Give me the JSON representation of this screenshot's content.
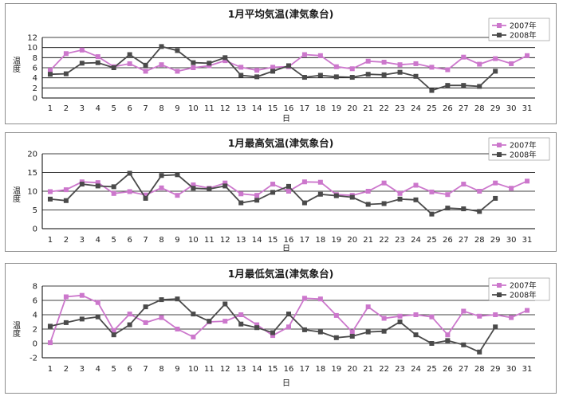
{
  "legend": [
    "2007年",
    "2008年"
  ],
  "colors": {
    "2007": "#cc77cc",
    "2008": "#4a4a4a"
  },
  "chart_data": [
    {
      "type": "line",
      "title": "1月平均気温(津気象台)",
      "xlabel": "日",
      "ylabel": "温度",
      "ylim": [
        0,
        12
      ],
      "yticks": [
        0,
        2,
        4,
        6,
        8,
        10,
        12
      ],
      "x": [
        1,
        2,
        3,
        4,
        5,
        6,
        7,
        8,
        9,
        10,
        11,
        12,
        13,
        14,
        15,
        16,
        17,
        18,
        19,
        20,
        21,
        22,
        23,
        24,
        25,
        26,
        27,
        28,
        29,
        30,
        31
      ],
      "legend_position": "top-right",
      "grid": true,
      "series": [
        {
          "name": "2007年",
          "values": [
            5.5,
            8.8,
            9.5,
            8.2,
            6.2,
            6.8,
            5.3,
            6.6,
            5.3,
            6.0,
            6.4,
            7.4,
            6.1,
            5.5,
            6.1,
            6.2,
            8.6,
            8.4,
            6.2,
            5.8,
            7.3,
            7.1,
            6.6,
            6.8,
            6.1,
            5.6,
            8.1,
            6.7,
            7.8,
            6.8,
            8.4
          ]
        },
        {
          "name": "2008年",
          "values": [
            4.7,
            4.8,
            6.9,
            7.0,
            6.0,
            8.6,
            6.5,
            10.2,
            9.4,
            7.0,
            6.9,
            8.0,
            4.5,
            4.2,
            5.3,
            6.4,
            4.1,
            4.5,
            4.2,
            4.1,
            4.7,
            4.6,
            5.1,
            4.3,
            1.5,
            2.5,
            2.5,
            2.3,
            5.3,
            null,
            null
          ]
        }
      ]
    },
    {
      "type": "line",
      "title": "1月最高気温(津気象台)",
      "xlabel": "日",
      "ylabel": "温度",
      "ylim": [
        0,
        20
      ],
      "yticks": [
        0,
        5,
        10,
        15,
        20
      ],
      "x": [
        1,
        2,
        3,
        4,
        5,
        6,
        7,
        8,
        9,
        10,
        11,
        12,
        13,
        14,
        15,
        16,
        17,
        18,
        19,
        20,
        21,
        22,
        23,
        24,
        25,
        26,
        27,
        28,
        29,
        30,
        31
      ],
      "legend_position": "top-right",
      "grid": true,
      "series": [
        {
          "name": "2007年",
          "values": [
            9.9,
            10.4,
            12.5,
            12.3,
            9.4,
            9.9,
            9.0,
            10.9,
            8.9,
            11.7,
            10.8,
            12.2,
            9.3,
            8.9,
            11.9,
            10.0,
            12.5,
            12.4,
            9.1,
            8.9,
            10.0,
            12.2,
            9.4,
            11.6,
            9.8,
            9.1,
            11.9,
            10.0,
            12.2,
            10.8,
            12.7
          ]
        },
        {
          "name": "2008年",
          "values": [
            7.9,
            7.5,
            11.9,
            11.4,
            11.2,
            14.8,
            8.1,
            14.2,
            14.4,
            10.8,
            10.6,
            11.4,
            6.9,
            7.6,
            9.7,
            11.3,
            6.9,
            9.2,
            8.8,
            8.4,
            6.5,
            6.7,
            7.9,
            7.7,
            3.9,
            5.5,
            5.3,
            4.6,
            8.1,
            null,
            null
          ]
        }
      ]
    },
    {
      "type": "line",
      "title": "1月最低気温(津気象台)",
      "xlabel": "日",
      "ylabel": "温度",
      "ylim": [
        -2,
        8
      ],
      "yticks": [
        -2,
        0,
        2,
        4,
        6,
        8
      ],
      "x": [
        1,
        2,
        3,
        4,
        5,
        6,
        7,
        8,
        9,
        10,
        11,
        12,
        13,
        14,
        15,
        16,
        17,
        18,
        19,
        20,
        21,
        22,
        23,
        24,
        25,
        26,
        27,
        28,
        29,
        30,
        31
      ],
      "legend_position": "top-right",
      "grid": true,
      "series": [
        {
          "name": "2007年",
          "values": [
            0.1,
            6.5,
            6.7,
            5.7,
            1.8,
            4.1,
            2.9,
            3.6,
            2.0,
            0.9,
            3.0,
            3.1,
            4.0,
            2.6,
            1.1,
            2.3,
            6.3,
            6.2,
            3.9,
            1.6,
            5.1,
            3.5,
            3.8,
            4.0,
            3.7,
            1.2,
            4.5,
            3.8,
            4.0,
            3.6,
            4.6
          ]
        },
        {
          "name": "2008年",
          "values": [
            2.4,
            2.9,
            3.4,
            3.7,
            1.2,
            2.6,
            5.1,
            6.1,
            6.2,
            4.1,
            3.1,
            5.5,
            2.7,
            2.2,
            1.5,
            4.1,
            1.9,
            1.6,
            0.8,
            1.0,
            1.6,
            1.7,
            3.0,
            1.2,
            0.0,
            0.4,
            -0.2,
            -1.2,
            2.3,
            null,
            null
          ]
        }
      ]
    }
  ]
}
